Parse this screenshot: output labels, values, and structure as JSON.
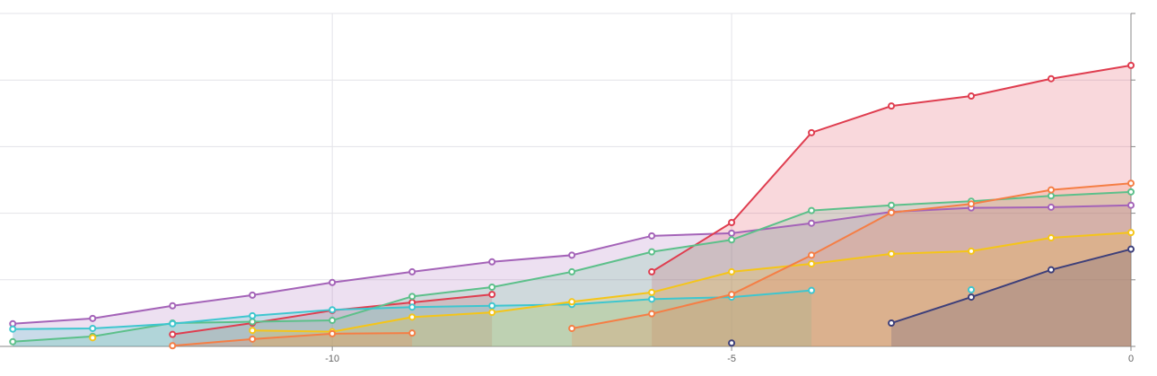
{
  "chart_data": {
    "type": "line",
    "area": true,
    "grid": true,
    "x": [
      -14,
      -13,
      -12,
      -11,
      -10,
      -9,
      -8,
      -7,
      -6,
      -5,
      -4,
      -3,
      -2,
      -1,
      0
    ],
    "xlim": [
      -14.16,
      0
    ],
    "xticks": [
      -10,
      -5,
      0
    ],
    "ylim": [
      0,
      5
    ],
    "yticks": [
      0,
      1,
      2,
      3,
      4,
      5
    ],
    "series": [
      {
        "color": "#a463b8",
        "values": [
          0.34,
          0.42,
          0.61,
          0.77,
          0.96,
          1.12,
          1.27,
          1.37,
          1.66,
          1.7,
          1.85,
          2.02,
          2.08,
          2.09,
          2.12
        ]
      },
      {
        "color": "#df3d4f",
        "values": [
          null,
          null,
          0.18,
          0.35,
          0.54,
          0.66,
          0.78,
          null,
          1.12,
          1.86,
          3.21,
          3.61,
          3.76,
          4.02,
          4.22
        ]
      },
      {
        "color": "#5cc08a",
        "values": [
          0.07,
          0.15,
          0.35,
          0.37,
          0.39,
          0.75,
          0.89,
          1.12,
          1.42,
          1.6,
          2.04,
          2.12,
          2.18,
          2.26,
          2.32
        ]
      },
      {
        "color": "#3ec6cf",
        "values": [
          0.26,
          0.27,
          0.34,
          0.46,
          0.55,
          0.59,
          0.61,
          0.63,
          0.71,
          0.74,
          0.84,
          null,
          0.85,
          null,
          null
        ]
      },
      {
        "color": "#f5c518",
        "values": [
          null,
          0.13,
          null,
          0.24,
          0.22,
          0.44,
          0.51,
          0.67,
          0.81,
          1.12,
          1.24,
          1.39,
          1.43,
          1.63,
          1.71
        ]
      },
      {
        "color": "#f57e45",
        "values": [
          null,
          null,
          0.01,
          0.11,
          0.19,
          0.2,
          null,
          0.27,
          0.49,
          0.78,
          1.37,
          2.01,
          2.14,
          2.35,
          2.45
        ]
      },
      {
        "color": "#3d3f7a",
        "values": [
          null,
          null,
          null,
          null,
          null,
          null,
          null,
          null,
          null,
          0.05,
          null,
          0.35,
          0.74,
          1.15,
          1.46
        ]
      }
    ]
  }
}
